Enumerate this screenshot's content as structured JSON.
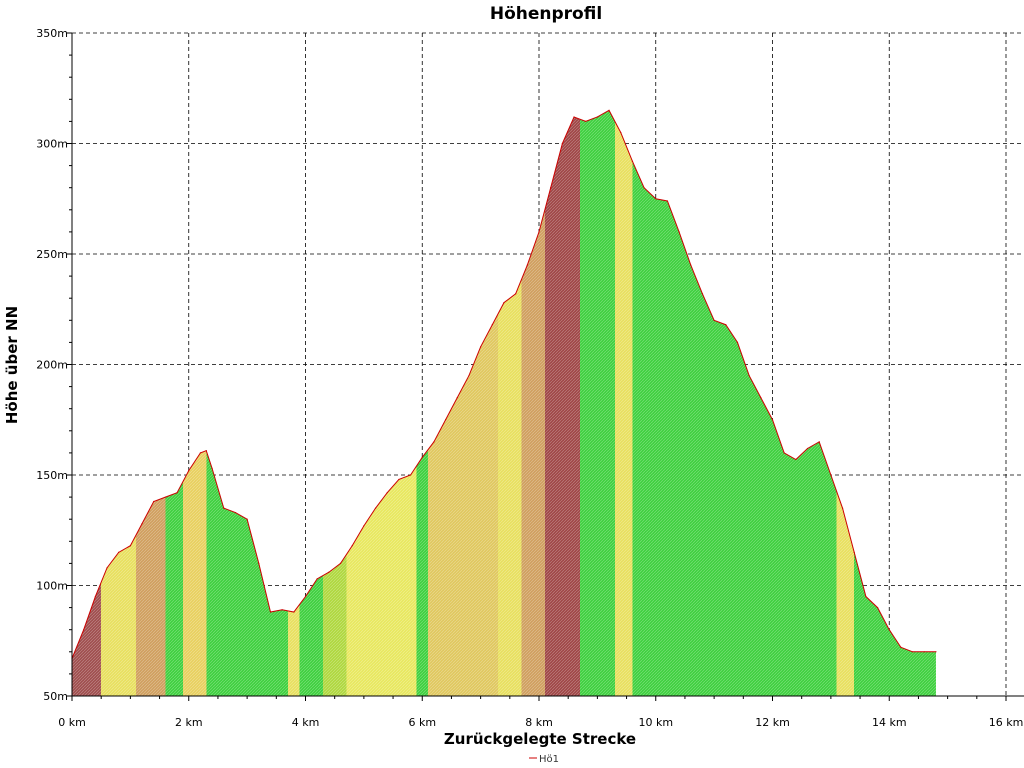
{
  "chart_data": {
    "type": "area",
    "title": "Höhenprofil",
    "xlabel": "Zurückgelegte Strecke",
    "ylabel": "Höhe über NN",
    "xlim": [
      0,
      16
    ],
    "ylim": [
      50,
      350
    ],
    "x_ticks": [
      0,
      2,
      4,
      6,
      8,
      10,
      12,
      14,
      16
    ],
    "x_tick_labels": [
      "0 km",
      "2 km",
      "4 km",
      "6 km",
      "8 km",
      "10 km",
      "12 km",
      "14 km",
      "16 km"
    ],
    "y_ticks": [
      50,
      100,
      150,
      200,
      250,
      300,
      350
    ],
    "y_tick_labels": [
      "50m",
      "100m",
      "150m",
      "200m",
      "250m",
      "300m",
      "350m"
    ],
    "grid": true,
    "legend_position": "bottom-center",
    "series": [
      {
        "name": "Hö1",
        "line_color": "#cc0000",
        "x": [
          0,
          0.2,
          0.4,
          0.6,
          0.8,
          1.0,
          1.2,
          1.4,
          1.6,
          1.8,
          2.0,
          2.2,
          2.3,
          2.4,
          2.6,
          2.8,
          3.0,
          3.2,
          3.4,
          3.6,
          3.8,
          4.0,
          4.2,
          4.4,
          4.6,
          4.8,
          5.0,
          5.2,
          5.4,
          5.6,
          5.8,
          6.0,
          6.2,
          6.4,
          6.6,
          6.8,
          7.0,
          7.2,
          7.4,
          7.6,
          7.8,
          8.0,
          8.2,
          8.4,
          8.6,
          8.8,
          9.0,
          9.2,
          9.4,
          9.6,
          9.8,
          10.0,
          10.2,
          10.4,
          10.6,
          10.8,
          11.0,
          11.2,
          11.4,
          11.6,
          11.8,
          12.0,
          12.2,
          12.4,
          12.6,
          12.8,
          13.0,
          13.2,
          13.4,
          13.6,
          13.8,
          14.0,
          14.2,
          14.4,
          14.6,
          14.8
        ],
        "y": [
          67,
          80,
          95,
          108,
          115,
          118,
          128,
          138,
          140,
          142,
          152,
          160,
          161,
          153,
          135,
          133,
          130,
          110,
          88,
          89,
          88,
          95,
          103,
          106,
          110,
          118,
          127,
          135,
          142,
          148,
          150,
          158,
          165,
          175,
          185,
          195,
          208,
          218,
          228,
          232,
          245,
          260,
          280,
          300,
          312,
          310,
          312,
          315,
          305,
          292,
          280,
          275,
          274,
          260,
          245,
          232,
          220,
          218,
          210,
          195,
          185,
          175,
          160,
          157,
          162,
          165,
          150,
          135,
          115,
          95,
          90,
          80,
          72,
          70,
          70,
          70
        ],
        "gradient_bands": [
          {
            "from": 0.0,
            "to": 0.5,
            "color": "#a05050"
          },
          {
            "from": 0.5,
            "to": 1.1,
            "color": "#e8e060"
          },
          {
            "from": 1.1,
            "to": 1.6,
            "color": "#d0a060"
          },
          {
            "from": 1.6,
            "to": 1.9,
            "color": "#40d040"
          },
          {
            "from": 1.9,
            "to": 2.3,
            "color": "#e8d060"
          },
          {
            "from": 2.3,
            "to": 3.7,
            "color": "#40d040"
          },
          {
            "from": 3.7,
            "to": 3.9,
            "color": "#e8e060"
          },
          {
            "from": 3.9,
            "to": 4.3,
            "color": "#40d040"
          },
          {
            "from": 4.3,
            "to": 4.7,
            "color": "#b0d840"
          },
          {
            "from": 4.7,
            "to": 5.9,
            "color": "#e8e860"
          },
          {
            "from": 5.9,
            "to": 6.1,
            "color": "#40d040"
          },
          {
            "from": 6.1,
            "to": 7.3,
            "color": "#e0c860"
          },
          {
            "from": 7.3,
            "to": 7.7,
            "color": "#e8e060"
          },
          {
            "from": 7.7,
            "to": 8.1,
            "color": "#d0a060"
          },
          {
            "from": 8.1,
            "to": 8.7,
            "color": "#a04848"
          },
          {
            "from": 8.7,
            "to": 9.3,
            "color": "#40d040"
          },
          {
            "from": 9.3,
            "to": 9.6,
            "color": "#e8e060"
          },
          {
            "from": 9.6,
            "to": 13.1,
            "color": "#40d040"
          },
          {
            "from": 13.1,
            "to": 13.4,
            "color": "#e8e060"
          },
          {
            "from": 13.4,
            "to": 14.8,
            "color": "#40d040"
          }
        ]
      }
    ]
  }
}
